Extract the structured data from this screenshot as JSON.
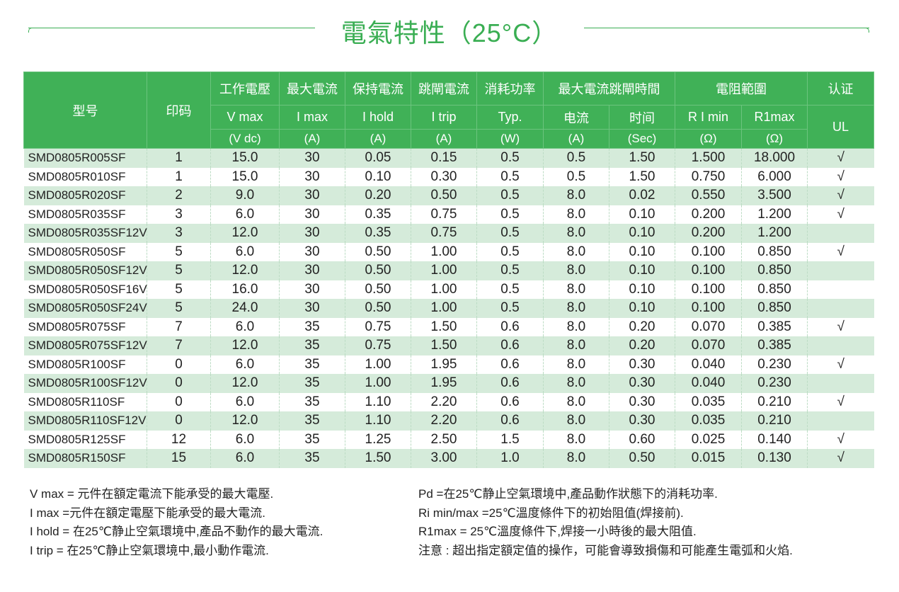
{
  "title": "電氣特性（25°C）",
  "colors": {
    "accent": "#40b157",
    "row_alt": "#d5ebda"
  },
  "header": {
    "model": "型号",
    "mark": "印码",
    "vmax": {
      "cn": "工作電壓",
      "sym": "V max",
      "unit": "(V dc)"
    },
    "imax": {
      "cn": "最大電流",
      "sym": "I max",
      "unit": "(A)"
    },
    "ihold": {
      "cn": "保持電流",
      "sym": "I hold",
      "unit": "(A)"
    },
    "itrip": {
      "cn": "跳閘電流",
      "sym": "I trip",
      "unit": "(A)"
    },
    "pd": {
      "cn": "消耗功率",
      "sym": "Typ.",
      "unit": "(W)"
    },
    "trip_time": {
      "cn": "最大電流跳閘時間",
      "current": "电流",
      "current_unit": "(A)",
      "time": "时间",
      "time_unit": "(Sec)"
    },
    "resistance": {
      "cn": "電阻範圍",
      "rmin": "R I min",
      "rmin_unit": "(Ω)",
      "r1max": "R1max",
      "r1max_unit": "(Ω)"
    },
    "cert": {
      "cn": "认证",
      "sym": "UL"
    }
  },
  "rows": [
    [
      "SMD0805R005SF",
      "1",
      "15.0",
      "30",
      "0.05",
      "0.15",
      "0.5",
      "0.5",
      "1.50",
      "1.500",
      "18.000",
      "√"
    ],
    [
      "SMD0805R010SF",
      "1",
      "15.0",
      "30",
      "0.10",
      "0.30",
      "0.5",
      "0.5",
      "1.50",
      "0.750",
      "6.000",
      "√"
    ],
    [
      "SMD0805R020SF",
      "2",
      "9.0",
      "30",
      "0.20",
      "0.50",
      "0.5",
      "8.0",
      "0.02",
      "0.550",
      "3.500",
      "√"
    ],
    [
      "SMD0805R035SF",
      "3",
      "6.0",
      "30",
      "0.35",
      "0.75",
      "0.5",
      "8.0",
      "0.10",
      "0.200",
      "1.200",
      "√"
    ],
    [
      "SMD0805R035SF12V",
      "3",
      "12.0",
      "30",
      "0.35",
      "0.75",
      "0.5",
      "8.0",
      "0.10",
      "0.200",
      "1.200",
      ""
    ],
    [
      "SMD0805R050SF",
      "5",
      "6.0",
      "30",
      "0.50",
      "1.00",
      "0.5",
      "8.0",
      "0.10",
      "0.100",
      "0.850",
      "√"
    ],
    [
      "SMD0805R050SF12V",
      "5",
      "12.0",
      "30",
      "0.50",
      "1.00",
      "0.5",
      "8.0",
      "0.10",
      "0.100",
      "0.850",
      ""
    ],
    [
      "SMD0805R050SF16V",
      "5",
      "16.0",
      "30",
      "0.50",
      "1.00",
      "0.5",
      "8.0",
      "0.10",
      "0.100",
      "0.850",
      ""
    ],
    [
      "SMD0805R050SF24V",
      "5",
      "24.0",
      "30",
      "0.50",
      "1.00",
      "0.5",
      "8.0",
      "0.10",
      "0.100",
      "0.850",
      ""
    ],
    [
      "SMD0805R075SF",
      "7",
      "6.0",
      "35",
      "0.75",
      "1.50",
      "0.6",
      "8.0",
      "0.20",
      "0.070",
      "0.385",
      "√"
    ],
    [
      "SMD0805R075SF12V",
      "7",
      "12.0",
      "35",
      "0.75",
      "1.50",
      "0.6",
      "8.0",
      "0.20",
      "0.070",
      "0.385",
      ""
    ],
    [
      "SMD0805R100SF",
      "0",
      "6.0",
      "35",
      "1.00",
      "1.95",
      "0.6",
      "8.0",
      "0.30",
      "0.040",
      "0.230",
      "√"
    ],
    [
      "SMD0805R100SF12V",
      "0",
      "12.0",
      "35",
      "1.00",
      "1.95",
      "0.6",
      "8.0",
      "0.30",
      "0.040",
      "0.230",
      ""
    ],
    [
      "SMD0805R110SF",
      "0",
      "6.0",
      "35",
      "1.10",
      "2.20",
      "0.6",
      "8.0",
      "0.30",
      "0.035",
      "0.210",
      "√"
    ],
    [
      "SMD0805R110SF12V",
      "0",
      "12.0",
      "35",
      "1.10",
      "2.20",
      "0.6",
      "8.0",
      "0.30",
      "0.035",
      "0.210",
      ""
    ],
    [
      "SMD0805R125SF",
      "12",
      "6.0",
      "35",
      "1.25",
      "2.50",
      "1.5",
      "8.0",
      "0.60",
      "0.025",
      "0.140",
      "√"
    ],
    [
      "SMD0805R150SF",
      "15",
      "6.0",
      "35",
      "1.50",
      "3.00",
      "1.0",
      "8.0",
      "0.50",
      "0.015",
      "0.130",
      "√"
    ]
  ],
  "notes_left": [
    "V max = 元件在額定電流下能承受的最大電壓.",
    "I max =元件在額定電壓下能承受的最大電流.",
    "I hold = 在25℃静止空氣環境中,產品不動作的最大電流.",
    "I trip = 在25℃静止空氣環境中,最小動作電流."
  ],
  "notes_right": [
    "Pd =在25℃静止空氣環境中,產品動作狀態下的消耗功率.",
    "Ri min/max  =25℃溫度條件下的初始阻值(焊接前).",
    "R1max  = 25℃溫度條件下,焊接一小時後的最大阻值.",
    "注意 : 超出指定額定值的操作，可能會導致損傷和可能產生電弧和火焰."
  ]
}
